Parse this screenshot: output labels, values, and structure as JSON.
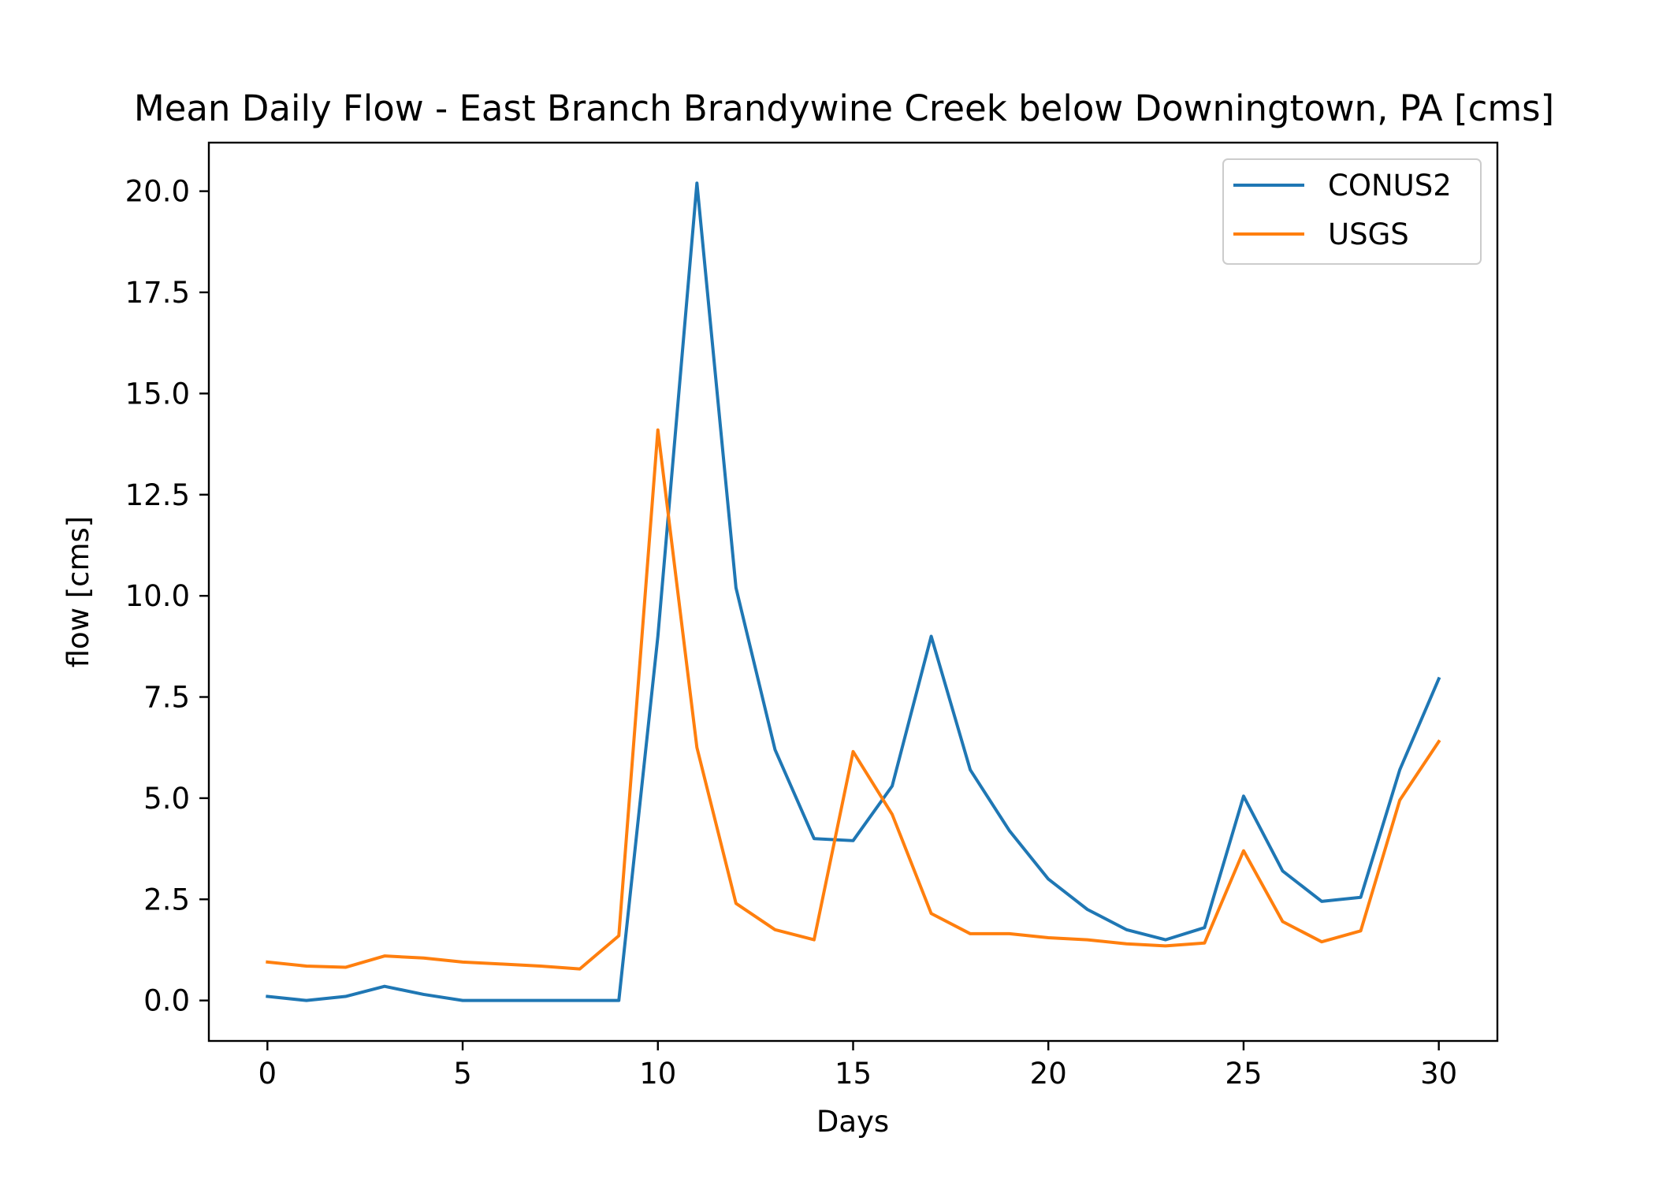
{
  "chart_data": {
    "type": "line",
    "title": "Mean Daily Flow - East Branch Brandywine Creek below Downingtown, PA [cms]",
    "xlabel": "Days",
    "ylabel": "flow [cms]",
    "xlim": [
      -1.5,
      31.5
    ],
    "ylim": [
      -1.0,
      21.2
    ],
    "xticks": [
      0,
      5,
      10,
      15,
      20,
      25,
      30
    ],
    "yticks": [
      0.0,
      2.5,
      5.0,
      7.5,
      10.0,
      12.5,
      15.0,
      17.5,
      20.0
    ],
    "xtick_labels": [
      "0",
      "5",
      "10",
      "15",
      "20",
      "25",
      "30"
    ],
    "ytick_labels": [
      "0.0",
      "2.5",
      "5.0",
      "7.5",
      "10.0",
      "12.5",
      "15.0",
      "17.5",
      "20.0"
    ],
    "grid": false,
    "legend_position": "top-right",
    "x": [
      0,
      1,
      2,
      3,
      4,
      5,
      6,
      7,
      8,
      9,
      10,
      11,
      12,
      13,
      14,
      15,
      16,
      17,
      18,
      19,
      20,
      21,
      22,
      23,
      24,
      25,
      26,
      27,
      28,
      29,
      30
    ],
    "series": [
      {
        "name": "CONUS2",
        "color": "#1f77b4",
        "values": [
          0.1,
          0.0,
          0.1,
          0.35,
          0.15,
          0.0,
          0.0,
          0.0,
          0.0,
          0.0,
          9.0,
          20.2,
          10.2,
          6.2,
          4.0,
          3.95,
          5.3,
          9.0,
          5.7,
          4.2,
          3.0,
          2.25,
          1.75,
          1.5,
          1.8,
          5.05,
          3.2,
          2.45,
          2.55,
          5.7,
          7.95
        ]
      },
      {
        "name": "USGS",
        "color": "#ff7f0e",
        "values": [
          0.95,
          0.85,
          0.82,
          1.1,
          1.05,
          0.95,
          0.9,
          0.85,
          0.78,
          1.6,
          14.1,
          6.25,
          2.4,
          1.75,
          1.5,
          6.15,
          4.6,
          2.15,
          1.65,
          1.65,
          1.55,
          1.5,
          1.4,
          1.35,
          1.42,
          3.7,
          1.95,
          1.45,
          1.72,
          4.95,
          6.4
        ]
      }
    ]
  }
}
